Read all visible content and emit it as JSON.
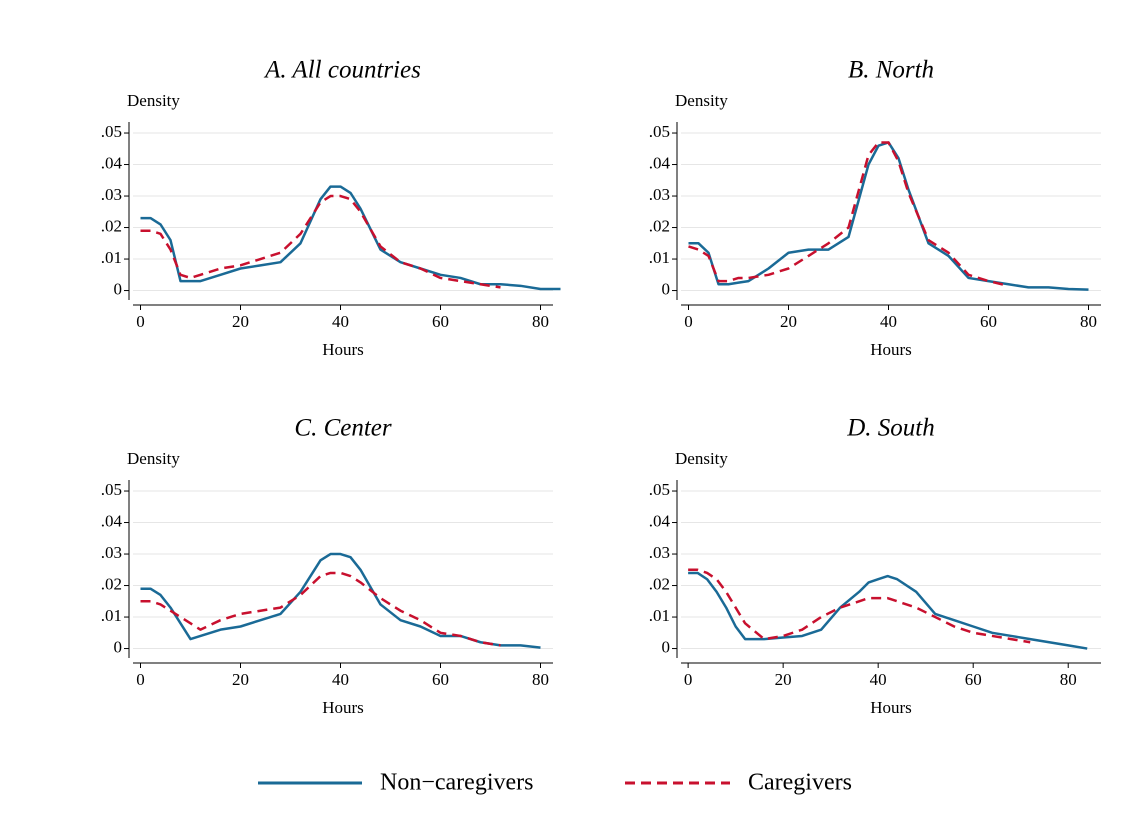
{
  "chart_data": [
    {
      "type": "line",
      "title": "A. All countries",
      "xlabel": "Hours",
      "ylabel": "Density",
      "x": [
        0,
        2,
        4,
        6,
        8,
        10,
        12,
        16,
        20,
        24,
        28,
        32,
        36,
        38,
        40,
        42,
        44,
        48,
        52,
        56,
        60,
        64,
        68,
        72,
        76,
        80,
        84
      ],
      "xlim": [
        -1.5,
        82.5
      ],
      "xticks": [
        0,
        20,
        40,
        60,
        80
      ],
      "ylim": [
        -0.003,
        0.0535
      ],
      "yticks": [
        0,
        {
          "value": 0.01,
          "label": ".01"
        },
        {
          "value": 0.02,
          "label": ".02"
        },
        {
          "value": 0.03,
          "label": ".03"
        },
        {
          "value": 0.04,
          "label": ".04"
        },
        {
          "value": 0.05,
          "label": ".05"
        }
      ],
      "grid": true,
      "series": [
        {
          "name": "Non−caregivers",
          "color": "#1a6a96",
          "dash": "solid",
          "values": [
            0.023,
            0.023,
            0.021,
            0.016,
            0.003,
            0.003,
            0.003,
            0.005,
            0.007,
            0.008,
            0.009,
            0.015,
            0.029,
            0.033,
            0.033,
            0.031,
            0.026,
            0.013,
            0.009,
            0.007,
            0.005,
            0.004,
            0.002,
            0.002,
            0.0015,
            0.0005,
            0.0005
          ]
        },
        {
          "name": "Caregivers",
          "color": "#c8102e",
          "dash": "dashed",
          "values": [
            0.019,
            0.019,
            0.018,
            0.013,
            0.005,
            0.004,
            0.005,
            0.007,
            0.008,
            0.01,
            0.012,
            0.018,
            0.028,
            0.03,
            0.03,
            0.029,
            0.025,
            0.014,
            0.009,
            0.007,
            0.004,
            0.003,
            0.002,
            0.001,
            null,
            null,
            null
          ]
        }
      ]
    },
    {
      "type": "line",
      "title": "B. North",
      "xlabel": "Hours",
      "ylabel": "Density",
      "x": [
        0,
        2,
        4,
        6,
        8,
        10,
        12,
        16,
        20,
        24,
        28,
        32,
        36,
        38,
        40,
        42,
        44,
        48,
        52,
        56,
        60,
        64,
        68,
        72,
        76,
        80,
        84
      ],
      "xlim": [
        -1.5,
        82.5
      ],
      "xticks": [
        0,
        20,
        40,
        60,
        80
      ],
      "ylim": [
        -0.003,
        0.0535
      ],
      "yticks": [
        0,
        {
          "value": 0.01,
          "label": ".01"
        },
        {
          "value": 0.02,
          "label": ".02"
        },
        {
          "value": 0.03,
          "label": ".03"
        },
        {
          "value": 0.04,
          "label": ".04"
        },
        {
          "value": 0.05,
          "label": ".05"
        }
      ],
      "grid": true,
      "series": [
        {
          "name": "Non−caregivers",
          "color": "#1a6a96",
          "dash": "solid",
          "values": [
            0.015,
            0.015,
            0.012,
            0.002,
            0.002,
            0.0025,
            0.003,
            0.007,
            0.012,
            0.013,
            0.013,
            0.017,
            0.04,
            0.046,
            0.047,
            0.042,
            0.032,
            0.015,
            0.011,
            0.004,
            0.003,
            0.002,
            0.001,
            0.001,
            0.0005,
            0.0003,
            null
          ]
        },
        {
          "name": "Caregivers",
          "color": "#c8102e",
          "dash": "dashed",
          "values": [
            0.014,
            0.013,
            0.011,
            0.003,
            0.003,
            0.004,
            0.004,
            0.005,
            0.007,
            0.011,
            0.015,
            0.02,
            0.043,
            0.047,
            0.047,
            0.041,
            0.031,
            0.016,
            0.012,
            0.005,
            0.003,
            0.0015,
            null,
            null,
            null,
            null,
            null
          ]
        }
      ]
    },
    {
      "type": "line",
      "title": "C. Center",
      "xlabel": "Hours",
      "ylabel": "Density",
      "x": [
        0,
        2,
        4,
        6,
        8,
        10,
        12,
        16,
        20,
        24,
        28,
        32,
        36,
        38,
        40,
        42,
        44,
        48,
        52,
        56,
        60,
        64,
        68,
        72,
        76,
        80,
        84
      ],
      "xlim": [
        -1.5,
        82.5
      ],
      "xticks": [
        0,
        20,
        40,
        60,
        80
      ],
      "ylim": [
        -0.003,
        0.0535
      ],
      "yticks": [
        0,
        {
          "value": 0.01,
          "label": ".01"
        },
        {
          "value": 0.02,
          "label": ".02"
        },
        {
          "value": 0.03,
          "label": ".03"
        },
        {
          "value": 0.04,
          "label": ".04"
        },
        {
          "value": 0.05,
          "label": ".05"
        }
      ],
      "grid": true,
      "series": [
        {
          "name": "Non−caregivers",
          "color": "#1a6a96",
          "dash": "solid",
          "values": [
            0.019,
            0.019,
            0.017,
            0.013,
            0.008,
            0.003,
            0.004,
            0.006,
            0.007,
            0.009,
            0.011,
            0.018,
            0.028,
            0.03,
            0.03,
            0.029,
            0.025,
            0.014,
            0.009,
            0.007,
            0.004,
            0.004,
            0.002,
            0.001,
            0.001,
            0.0003,
            null
          ]
        },
        {
          "name": "Caregivers",
          "color": "#c8102e",
          "dash": "dashed",
          "values": [
            0.015,
            0.015,
            0.014,
            0.012,
            0.01,
            0.008,
            0.006,
            0.009,
            0.011,
            0.012,
            0.013,
            0.017,
            0.023,
            0.024,
            0.024,
            0.023,
            0.021,
            0.016,
            0.012,
            0.009,
            0.005,
            0.004,
            0.002,
            0.001,
            null,
            null,
            null
          ]
        }
      ]
    },
    {
      "type": "line",
      "title": "D. South",
      "xlabel": "Hours",
      "ylabel": "Density",
      "x": [
        0,
        2,
        4,
        6,
        8,
        10,
        12,
        16,
        20,
        24,
        28,
        32,
        36,
        38,
        40,
        42,
        44,
        48,
        52,
        56,
        60,
        64,
        68,
        72,
        76,
        80,
        84
      ],
      "xlim": [
        -1.5,
        86.9
      ],
      "xticks": [
        0,
        20,
        40,
        60,
        80
      ],
      "ylim": [
        -0.003,
        0.0535
      ],
      "yticks": [
        0,
        {
          "value": 0.01,
          "label": ".01"
        },
        {
          "value": 0.02,
          "label": ".02"
        },
        {
          "value": 0.03,
          "label": ".03"
        },
        {
          "value": 0.04,
          "label": ".04"
        },
        {
          "value": 0.05,
          "label": ".05"
        }
      ],
      "grid": true,
      "series": [
        {
          "name": "Non−caregivers",
          "color": "#1a6a96",
          "dash": "solid",
          "values": [
            0.024,
            0.024,
            0.022,
            0.018,
            0.013,
            0.007,
            0.003,
            0.003,
            0.0035,
            0.004,
            0.006,
            0.013,
            0.018,
            0.021,
            0.022,
            0.023,
            0.022,
            0.018,
            0.011,
            0.009,
            0.007,
            0.005,
            0.004,
            0.003,
            0.002,
            0.001,
            0
          ]
        },
        {
          "name": "Caregivers",
          "color": "#c8102e",
          "dash": "dashed",
          "values": [
            0.025,
            0.025,
            0.024,
            0.022,
            0.018,
            0.013,
            0.008,
            0.003,
            0.004,
            0.006,
            0.01,
            0.013,
            0.015,
            0.016,
            0.016,
            0.016,
            0.015,
            0.013,
            0.01,
            0.007,
            0.005,
            0.004,
            0.003,
            0.002,
            null,
            null,
            null
          ]
        }
      ]
    }
  ]
}
